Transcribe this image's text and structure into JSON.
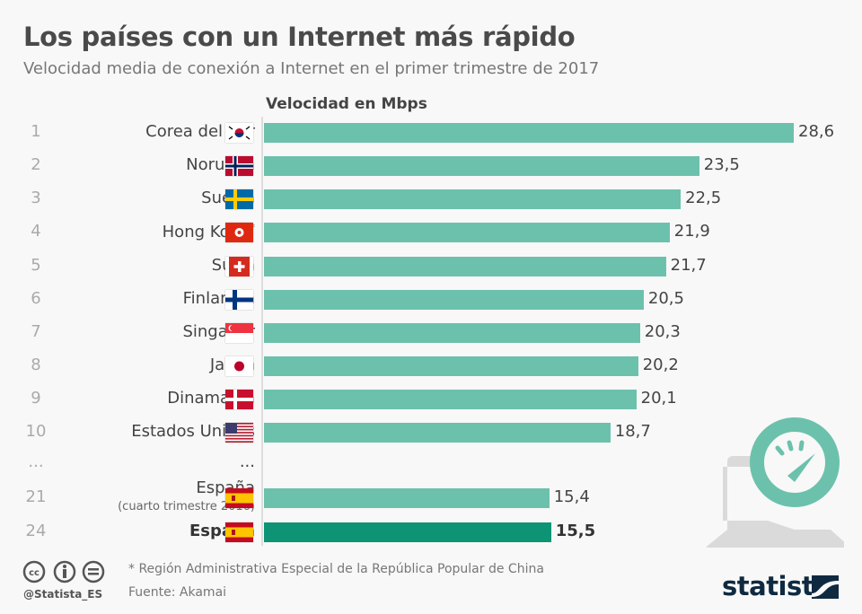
{
  "title": "Los países con un Internet más rápido",
  "subtitle": "Velocidad media de conexión a Internet en el primer trimestre de 2017",
  "chart_data": {
    "type": "bar",
    "orientation": "horizontal",
    "xlabel": "Velocidad en Mbps",
    "rows": [
      {
        "rank": "1",
        "label": "Corea del Sur",
        "flag": "south-korea",
        "value": 28.6,
        "value_label": "28,6"
      },
      {
        "rank": "2",
        "label": "Noruega",
        "flag": "norway",
        "value": 23.5,
        "value_label": "23,5"
      },
      {
        "rank": "3",
        "label": "Suecia",
        "flag": "sweden",
        "value": 22.5,
        "value_label": "22,5"
      },
      {
        "rank": "4",
        "label": "Hong Kong",
        "note": "*",
        "flag": "hong-kong",
        "value": 21.9,
        "value_label": "21,9"
      },
      {
        "rank": "5",
        "label": "Suiza",
        "flag": "switzerland",
        "value": 21.7,
        "value_label": "21,7"
      },
      {
        "rank": "6",
        "label": "Finlandia",
        "flag": "finland",
        "value": 20.5,
        "value_label": "20,5"
      },
      {
        "rank": "7",
        "label": "Singapur",
        "flag": "singapore",
        "value": 20.3,
        "value_label": "20,3"
      },
      {
        "rank": "8",
        "label": "Japón",
        "flag": "japan",
        "value": 20.2,
        "value_label": "20,2"
      },
      {
        "rank": "9",
        "label": "Dinamarca",
        "flag": "denmark",
        "value": 20.1,
        "value_label": "20,1"
      },
      {
        "rank": "10",
        "label": "Estados Unidos",
        "flag": "usa",
        "value": 18.7,
        "value_label": "18,7"
      },
      {
        "rank": "21",
        "label": "España",
        "sublabel": "(cuarto trimestre 2016)",
        "flag": "spain",
        "value": 15.4,
        "value_label": "15,4"
      },
      {
        "rank": "24",
        "label": "España",
        "flag": "spain",
        "value": 15.5,
        "value_label": "15,5",
        "highlight": true
      }
    ],
    "ellipsis": "...",
    "colors": {
      "bar": "#6cc1ac",
      "highlight": "#0d9474"
    }
  },
  "footer": {
    "note": "* Región Administrativa Especial de la República Popular de China",
    "source": "Fuente: Akamai",
    "handle": "@Statista_ES",
    "logo": "statista"
  }
}
